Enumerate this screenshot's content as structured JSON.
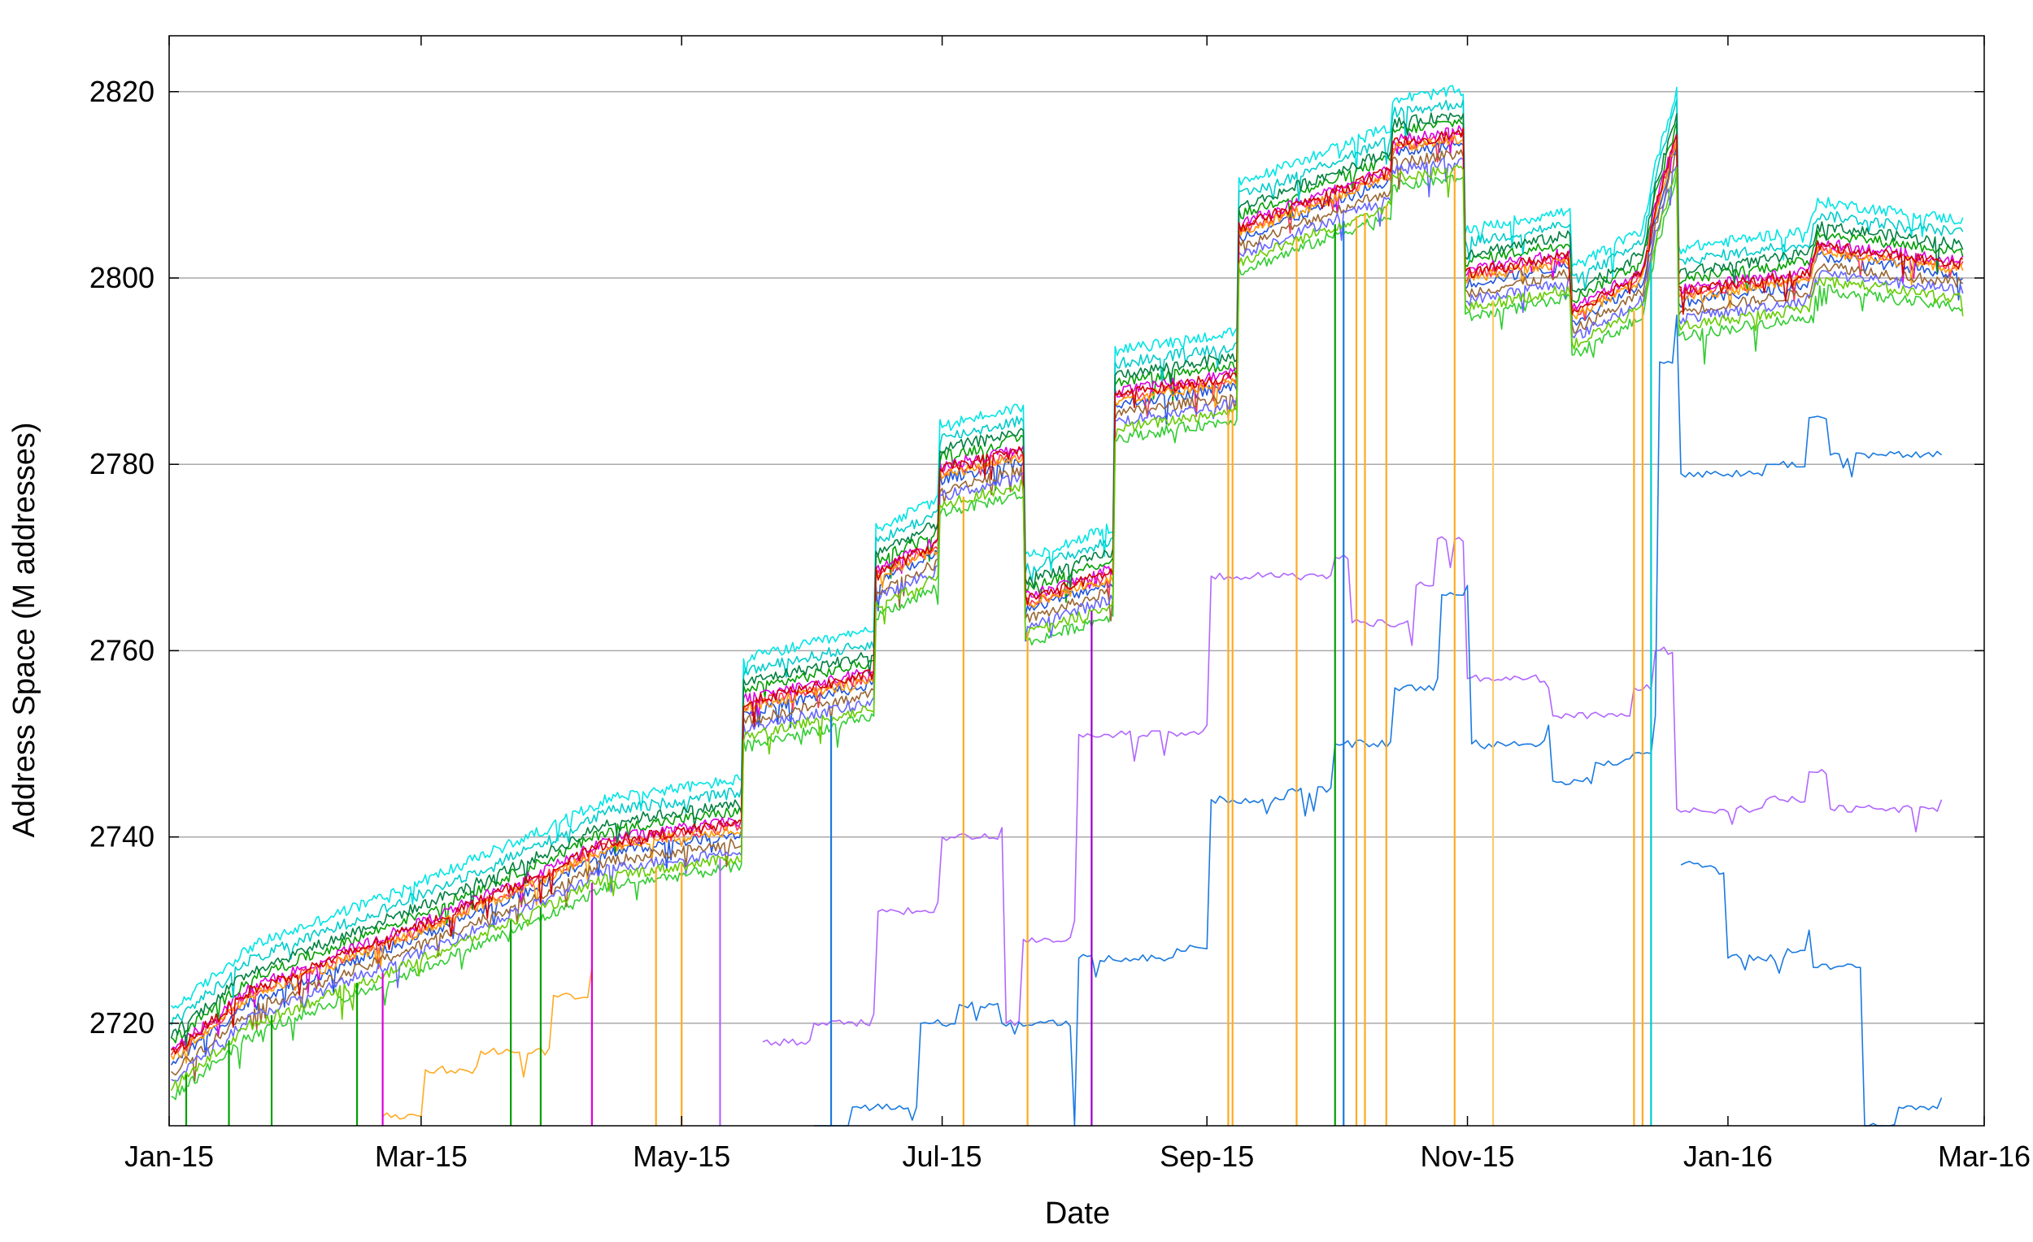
{
  "chart_data": {
    "type": "line",
    "xlabel": "Date",
    "ylabel": "Address Space (M addresses)",
    "x_ticks": [
      "Jan-15",
      "Mar-15",
      "May-15",
      "Jul-15",
      "Sep-15",
      "Nov-15",
      "Jan-16",
      "Mar-16"
    ],
    "x_tick_dates": [
      "2015-01-01",
      "2015-03-01",
      "2015-05-01",
      "2015-07-01",
      "2015-09-01",
      "2015-11-01",
      "2016-01-01",
      "2016-03-01"
    ],
    "xlim": [
      "2015-01-01",
      "2016-03-01"
    ],
    "y_ticks": [
      2720,
      2740,
      2760,
      2780,
      2800,
      2820
    ],
    "ylim": [
      2709,
      2826
    ],
    "grid": "horizontal",
    "series_colors": [
      "#00e5e5",
      "#00a000",
      "#33cc33",
      "#2255dd",
      "#ff3355",
      "#dd00dd",
      "#ff9900",
      "#00cccc",
      "#008040",
      "#996633",
      "#6666ff",
      "#cc0000",
      "#66cc00"
    ],
    "outlier_series": [
      {
        "color": "#b266ff",
        "points": [
          [
            "2015-05-20",
            2718
          ],
          [
            "2015-06-01",
            2720
          ],
          [
            "2015-06-15",
            2721
          ],
          [
            "2015-06-16",
            2732
          ],
          [
            "2015-06-30",
            2733
          ],
          [
            "2015-07-01",
            2740
          ],
          [
            "2015-07-15",
            2741
          ],
          [
            "2015-07-16",
            2720
          ],
          [
            "2015-07-20",
            2729
          ],
          [
            "2015-08-01",
            2731
          ],
          [
            "2015-08-02",
            2751
          ],
          [
            "2015-09-01",
            2752
          ],
          [
            "2015-09-02",
            2768
          ],
          [
            "2015-10-01",
            2770
          ],
          [
            "2015-10-05",
            2763
          ],
          [
            "2015-10-20",
            2767
          ],
          [
            "2015-10-25",
            2772
          ],
          [
            "2015-11-01",
            2757
          ],
          [
            "2015-11-20",
            2756
          ],
          [
            "2015-11-21",
            2753
          ],
          [
            "2015-12-10",
            2756
          ],
          [
            "2015-12-15",
            2760
          ],
          [
            "2015-12-20",
            2743
          ],
          [
            "2016-01-10",
            2744
          ],
          [
            "2016-01-20",
            2747
          ],
          [
            "2016-01-25",
            2743
          ],
          [
            "2016-02-20",
            2744
          ]
        ]
      },
      {
        "color": "#1a7ae0",
        "points": [
          [
            "2015-06-01",
            2709
          ],
          [
            "2015-06-10",
            2711
          ],
          [
            "2015-06-25",
            2711
          ],
          [
            "2015-06-26",
            2720
          ],
          [
            "2015-07-05",
            2722
          ],
          [
            "2015-07-15",
            2720
          ],
          [
            "2015-08-01",
            2709
          ],
          [
            "2015-08-02",
            2727
          ],
          [
            "2015-08-25",
            2728
          ],
          [
            "2015-09-01",
            2728
          ],
          [
            "2015-09-02",
            2744
          ],
          [
            "2015-09-20",
            2745
          ],
          [
            "2015-10-01",
            2750
          ],
          [
            "2015-10-15",
            2756
          ],
          [
            "2015-10-25",
            2757
          ],
          [
            "2015-10-26",
            2766
          ],
          [
            "2015-11-01",
            2767
          ],
          [
            "2015-11-02",
            2750
          ],
          [
            "2015-11-20",
            2752
          ],
          [
            "2015-11-21",
            2746
          ],
          [
            "2015-12-01",
            2748
          ],
          [
            "2015-12-10",
            2749
          ],
          [
            "2015-12-15",
            2753
          ],
          [
            "2015-12-16",
            2791
          ],
          [
            "2015-12-20",
            2796
          ],
          [
            "2015-12-21",
            2779
          ],
          [
            "2016-01-10",
            2780
          ],
          [
            "2016-01-20",
            2785
          ],
          [
            "2016-01-25",
            2781
          ],
          [
            "2016-02-20",
            2781
          ]
        ]
      },
      {
        "color": "#1a7ae0",
        "points": [
          [
            "2015-12-21",
            2737
          ],
          [
            "2015-12-30",
            2736
          ],
          [
            "2016-01-01",
            2727
          ],
          [
            "2016-01-15",
            2728
          ],
          [
            "2016-01-20",
            2730
          ],
          [
            "2016-01-21",
            2726
          ],
          [
            "2016-02-01",
            2726
          ],
          [
            "2016-02-02",
            2709
          ],
          [
            "2016-02-10",
            2711
          ],
          [
            "2016-02-20",
            2712
          ]
        ]
      },
      {
        "color": "#ffaa22",
        "points": [
          [
            "2015-02-20",
            2710
          ],
          [
            "2015-03-01",
            2710
          ],
          [
            "2015-03-02",
            2715
          ],
          [
            "2015-03-15",
            2717
          ],
          [
            "2015-04-01",
            2723
          ],
          [
            "2015-04-10",
            2726
          ]
        ]
      }
    ],
    "drops": [
      {
        "date": "2015-01-05",
        "color": "#00a000"
      },
      {
        "date": "2015-01-15",
        "color": "#00a000"
      },
      {
        "date": "2015-01-25",
        "color": "#00a000"
      },
      {
        "date": "2015-02-14",
        "color": "#00a000"
      },
      {
        "date": "2015-02-20",
        "color": "#dd00dd"
      },
      {
        "date": "2015-03-22",
        "color": "#00a000"
      },
      {
        "date": "2015-03-29",
        "color": "#00a000"
      },
      {
        "date": "2015-04-10",
        "color": "#dd00dd"
      },
      {
        "date": "2015-04-25",
        "color": "#ffaa22"
      },
      {
        "date": "2015-05-01",
        "color": "#ffaa22"
      },
      {
        "date": "2015-05-10",
        "color": "#b266ff"
      },
      {
        "date": "2015-06-05",
        "color": "#1a7ae0"
      },
      {
        "date": "2015-07-06",
        "color": "#ffaa22"
      },
      {
        "date": "2015-07-21",
        "color": "#ffaa22"
      },
      {
        "date": "2015-08-05",
        "color": "#9900cc"
      },
      {
        "date": "2015-09-06",
        "color": "#ffaa22"
      },
      {
        "date": "2015-09-07",
        "color": "#ffaa22"
      },
      {
        "date": "2015-09-22",
        "color": "#ffaa22"
      },
      {
        "date": "2015-10-01",
        "color": "#00a000"
      },
      {
        "date": "2015-10-03",
        "color": "#1a7ae0"
      },
      {
        "date": "2015-10-06",
        "color": "#ffaa22"
      },
      {
        "date": "2015-10-08",
        "color": "#ffaa22"
      },
      {
        "date": "2015-10-13",
        "color": "#ffaa22"
      },
      {
        "date": "2015-10-29",
        "color": "#ffaa22"
      },
      {
        "date": "2015-11-07",
        "color": "#ffcc66"
      },
      {
        "date": "2015-12-10",
        "color": "#ffaa22"
      },
      {
        "date": "2015-12-12",
        "color": "#ffaa22"
      },
      {
        "date": "2015-12-14",
        "color": "#00cccc"
      }
    ]
  }
}
